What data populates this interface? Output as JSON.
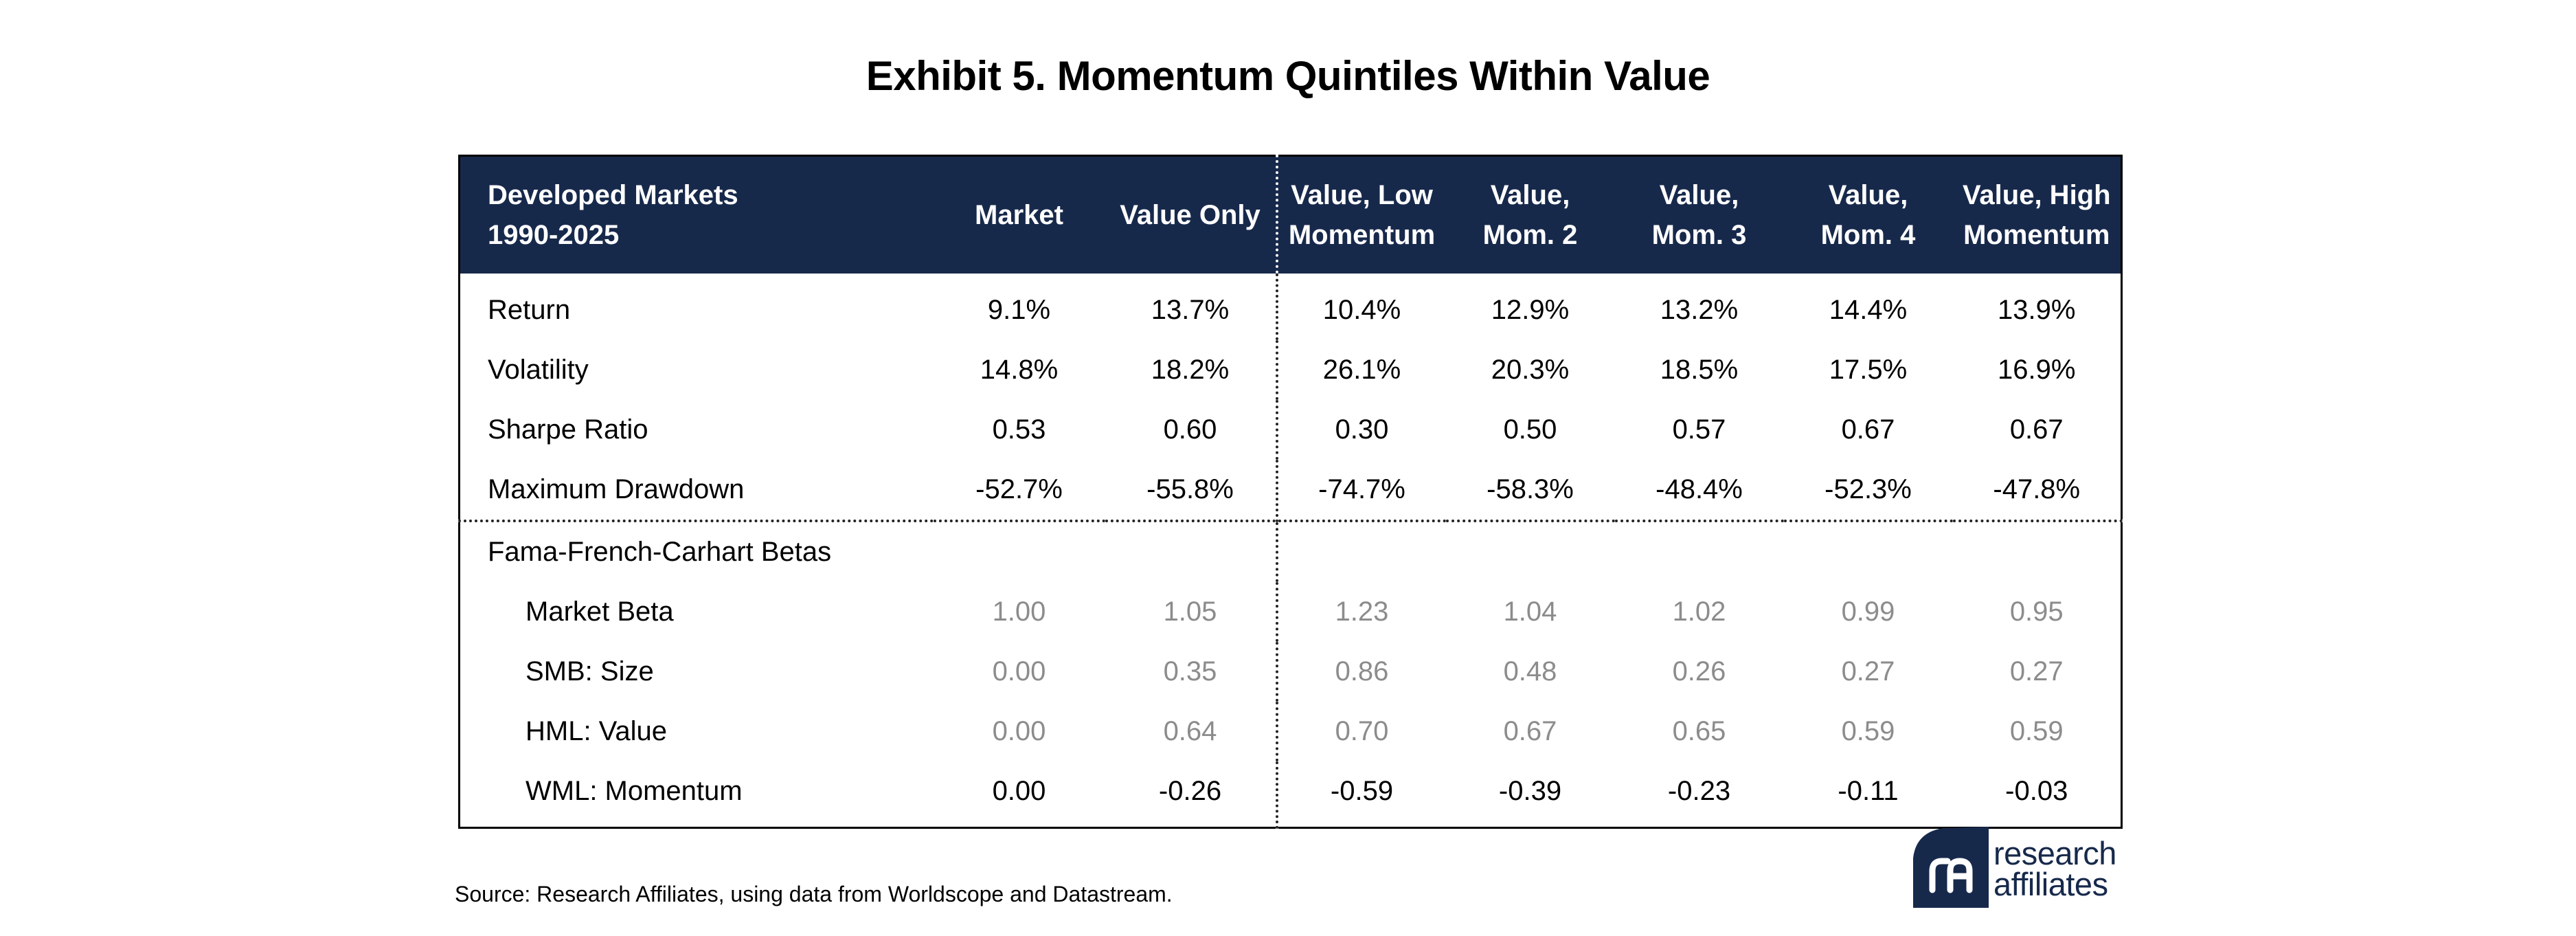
{
  "title": "Exhibit 5. Momentum Quintiles Within Value",
  "source": "Source: Research Affiliates, using data from Worldscope and Datastream.",
  "logo": {
    "line1": "research",
    "line2": "affiliates",
    "mark": "ra",
    "icon": "research-affiliates-logo",
    "color": "#17294b"
  },
  "colors": {
    "header_bg": "#17294b",
    "header_text": "#ffffff",
    "beta_value_text": "#8c8c8c"
  },
  "chart_data": {
    "type": "table",
    "title": "Exhibit 5. Momentum Quintiles Within Value",
    "header": {
      "label_line1": "Developed Markets",
      "label_line2": "1990-2025",
      "columns": [
        {
          "line1": "Market",
          "line2": ""
        },
        {
          "line1": "Value Only",
          "line2": ""
        },
        {
          "line1": "Value, Low",
          "line2": "Momentum"
        },
        {
          "line1": "Value,",
          "line2": "Mom. 2"
        },
        {
          "line1": "Value,",
          "line2": "Mom. 3"
        },
        {
          "line1": "Value,",
          "line2": "Mom. 4"
        },
        {
          "line1": "Value, High",
          "line2": "Momentum"
        }
      ]
    },
    "performance_rows": [
      {
        "label": "Return",
        "values": [
          "9.1%",
          "13.7%",
          "10.4%",
          "12.9%",
          "13.2%",
          "14.4%",
          "13.9%"
        ]
      },
      {
        "label": "Volatility",
        "values": [
          "14.8%",
          "18.2%",
          "26.1%",
          "20.3%",
          "18.5%",
          "17.5%",
          "16.9%"
        ]
      },
      {
        "label": "Sharpe Ratio",
        "values": [
          "0.53",
          "0.60",
          "0.30",
          "0.50",
          "0.57",
          "0.67",
          "0.67"
        ]
      },
      {
        "label": "Maximum Drawdown",
        "values": [
          "-52.7%",
          "-55.8%",
          "-74.7%",
          "-58.3%",
          "-48.4%",
          "-52.3%",
          "-47.8%"
        ]
      }
    ],
    "beta_section_label": "Fama-French-Carhart Betas",
    "beta_rows": [
      {
        "label": "Market Beta",
        "muted": true,
        "values": [
          "1.00",
          "1.05",
          "1.23",
          "1.04",
          "1.02",
          "0.99",
          "0.95"
        ]
      },
      {
        "label": "SMB: Size",
        "muted": true,
        "values": [
          "0.00",
          "0.35",
          "0.86",
          "0.48",
          "0.26",
          "0.27",
          "0.27"
        ]
      },
      {
        "label": "HML: Value",
        "muted": true,
        "values": [
          "0.00",
          "0.64",
          "0.70",
          "0.67",
          "0.65",
          "0.59",
          "0.59"
        ]
      },
      {
        "label": "WML: Momentum",
        "muted": false,
        "values": [
          "0.00",
          "-0.26",
          "-0.59",
          "-0.39",
          "-0.23",
          "-0.11",
          "-0.03"
        ]
      }
    ]
  }
}
